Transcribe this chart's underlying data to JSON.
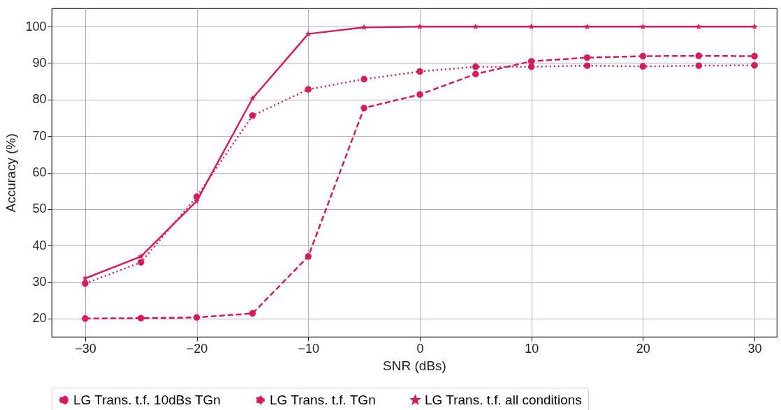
{
  "chart_data": {
    "type": "line",
    "xlabel": "SNR (dBs)",
    "ylabel": "Accuracy (%)",
    "x": [
      -30,
      -25,
      -20,
      -15,
      -10,
      -5,
      0,
      5,
      10,
      15,
      20,
      25,
      30
    ],
    "series": [
      {
        "name": "LG Trans. t.f. 10dBs TGn",
        "color": "#d81b60",
        "line_style": "dashed",
        "marker": "circle",
        "values": [
          20,
          20.1,
          20.3,
          21.4,
          37,
          77.7,
          81.4,
          87,
          90.5,
          91.5,
          91.9,
          92,
          91.9
        ]
      },
      {
        "name": "LG Trans. t.f. TGn",
        "color": "#d81b60",
        "line_style": "dotted",
        "marker": "circle",
        "values": [
          29.6,
          35.4,
          53.4,
          75.6,
          82.8,
          85.6,
          87.7,
          89,
          89,
          89.3,
          89.1,
          89.3,
          89.4
        ]
      },
      {
        "name": "LG Trans. t.f. all conditions",
        "color": "#d81b60",
        "line_style": "solid",
        "marker": "star",
        "values": [
          31,
          37,
          52.2,
          80.3,
          98,
          99.8,
          100,
          100,
          100,
          100,
          100,
          100,
          100
        ]
      }
    ],
    "xlim": [
      -33,
      32
    ],
    "ylim": [
      15,
      105
    ],
    "xticks": [
      {
        "value": -30,
        "label": "−30"
      },
      {
        "value": -20,
        "label": "−20"
      },
      {
        "value": -10,
        "label": "−10"
      },
      0,
      10,
      20,
      30
    ],
    "yticks": [
      20,
      30,
      40,
      50,
      60,
      70,
      80,
      90,
      100
    ],
    "grid": true,
    "legend": "bottom"
  }
}
